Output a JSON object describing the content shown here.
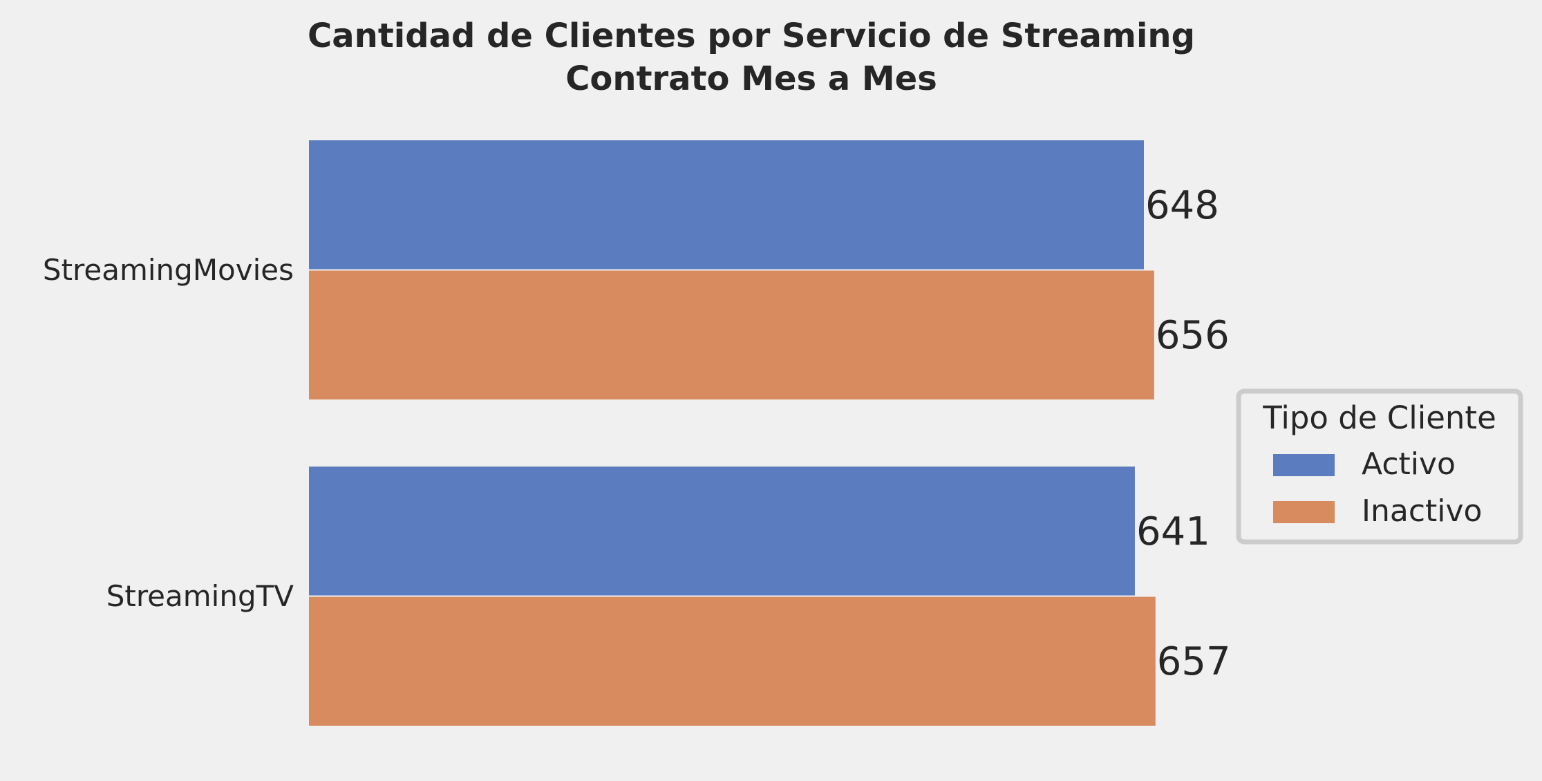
{
  "chart_data": {
    "type": "bar",
    "orientation": "horizontal",
    "title": "Cantidad de Clientes por Servicio de Streaming",
    "subtitle": "Contrato Mes a Mes",
    "categories": [
      "StreamingMovies",
      "StreamingTV"
    ],
    "series": [
      {
        "name": "Activo",
        "color": "#5b7dbf",
        "values": [
          648,
          641
        ]
      },
      {
        "name": "Inactivo",
        "color": "#d98b60",
        "values": [
          656,
          657
        ]
      }
    ],
    "xlim": [
      0,
      700
    ],
    "grid": false,
    "legend": {
      "title": "Tipo de Cliente",
      "placement": "center-right"
    }
  }
}
